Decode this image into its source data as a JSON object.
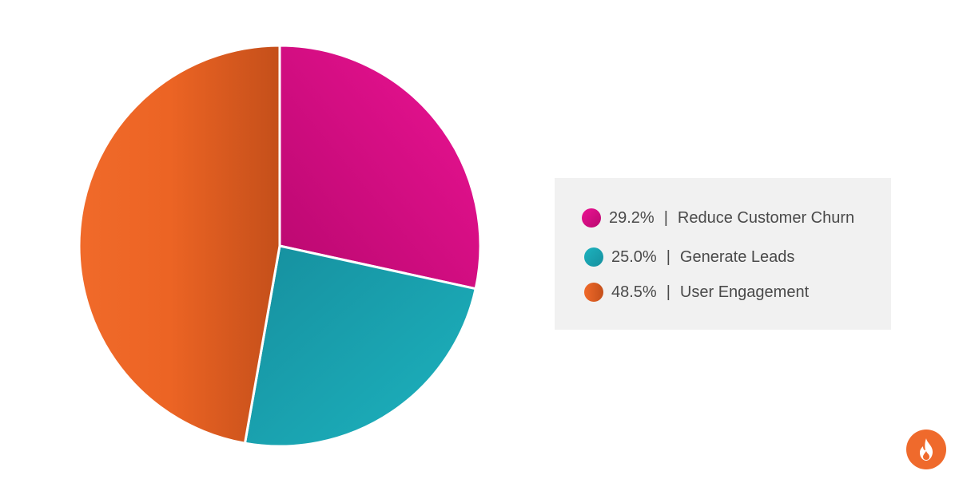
{
  "chart_data": {
    "type": "pie",
    "slices": [
      {
        "label": "Reduce Customer Churn",
        "value": 29.2,
        "percent_label": "29.2%",
        "color": "#d80f8c"
      },
      {
        "label": "Generate Leads",
        "value": 25.0,
        "percent_label": "25.0%",
        "color": "#1aa6b3"
      },
      {
        "label": "User Engagement",
        "value": 48.5,
        "percent_label": "48.5%",
        "color": "#eb6324"
      }
    ],
    "legend": {
      "placement": "right",
      "separator": "|"
    }
  },
  "logo": {
    "icon": "flame-icon",
    "color": "#ef6a2c"
  }
}
